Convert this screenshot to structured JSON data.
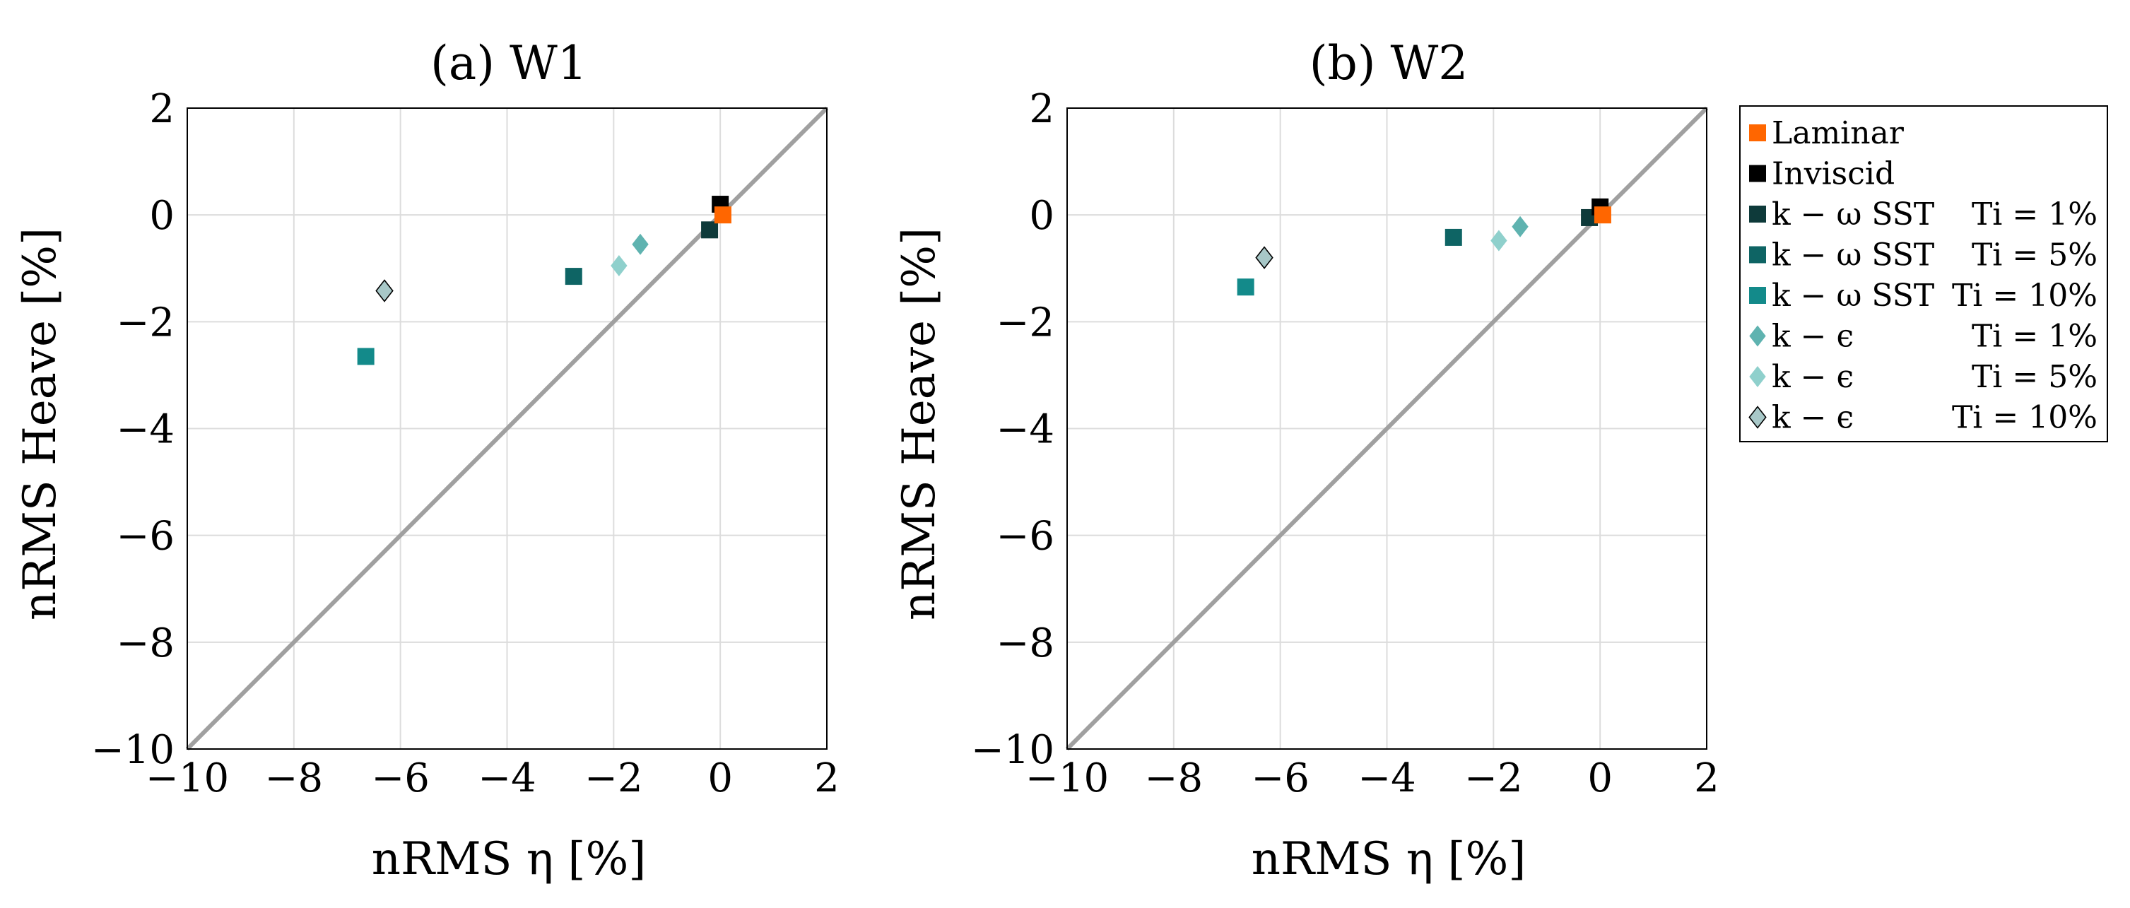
{
  "chart_data": [
    {
      "type": "scatter",
      "title": "(a) W1",
      "xlabel": "nRMS η [%]",
      "ylabel": "nRMS Heave [%]",
      "xlim": [
        -10,
        2
      ],
      "ylim": [
        -10,
        2
      ],
      "xticks": [
        -10,
        -8,
        -6,
        -4,
        -2,
        0,
        2
      ],
      "yticks": [
        -10,
        -8,
        -6,
        -4,
        -2,
        0,
        2
      ],
      "grid": true,
      "reference_line": {
        "from": [
          -10,
          -10
        ],
        "to": [
          2,
          2
        ]
      },
      "series": [
        {
          "name": "Laminar",
          "x": [
            0.05
          ],
          "y": [
            0.0
          ]
        },
        {
          "name": "Inviscid",
          "x": [
            0.0
          ],
          "y": [
            0.2
          ]
        },
        {
          "name": "k-ω SST Ti = 1%",
          "x": [
            -0.2
          ],
          "y": [
            -0.28
          ]
        },
        {
          "name": "k-ω SST Ti = 5%",
          "x": [
            -2.75
          ],
          "y": [
            -1.15
          ]
        },
        {
          "name": "k-ω SST Ti = 10%",
          "x": [
            -6.65
          ],
          "y": [
            -2.65
          ]
        },
        {
          "name": "k-ε Ti = 1%",
          "x": [
            -1.5
          ],
          "y": [
            -0.55
          ]
        },
        {
          "name": "k-ε Ti = 5%",
          "x": [
            -1.9
          ],
          "y": [
            -0.95
          ]
        },
        {
          "name": "k-ε Ti = 10%",
          "x": [
            -6.3
          ],
          "y": [
            -1.42
          ]
        }
      ]
    },
    {
      "type": "scatter",
      "title": "(b) W2",
      "xlabel": "nRMS η [%]",
      "ylabel": "nRMS Heave [%]",
      "xlim": [
        -10,
        2
      ],
      "ylim": [
        -10,
        2
      ],
      "xticks": [
        -10,
        -8,
        -6,
        -4,
        -2,
        0,
        2
      ],
      "yticks": [
        -10,
        -8,
        -6,
        -4,
        -2,
        0,
        2
      ],
      "grid": true,
      "reference_line": {
        "from": [
          -10,
          -10
        ],
        "to": [
          2,
          2
        ]
      },
      "series": [
        {
          "name": "Laminar",
          "x": [
            0.05
          ],
          "y": [
            0.0
          ]
        },
        {
          "name": "Inviscid",
          "x": [
            0.0
          ],
          "y": [
            0.15
          ]
        },
        {
          "name": "k-ω SST Ti = 1%",
          "x": [
            -0.2
          ],
          "y": [
            -0.05
          ]
        },
        {
          "name": "k-ω SST Ti = 5%",
          "x": [
            -2.75
          ],
          "y": [
            -0.42
          ]
        },
        {
          "name": "k-ω SST Ti = 10%",
          "x": [
            -6.65
          ],
          "y": [
            -1.35
          ]
        },
        {
          "name": "k-ε Ti = 1%",
          "x": [
            -1.5
          ],
          "y": [
            -0.22
          ]
        },
        {
          "name": "k-ε Ti = 5%",
          "x": [
            -1.9
          ],
          "y": [
            -0.48
          ]
        },
        {
          "name": "k-ε Ti = 10%",
          "x": [
            -6.3
          ],
          "y": [
            -0.8
          ]
        }
      ]
    }
  ],
  "legend": {
    "placement": "right",
    "entries": [
      {
        "label": "Laminar",
        "model": "",
        "ti": "",
        "marker": "square",
        "color": "#FF6600"
      },
      {
        "label": "Inviscid",
        "model": "",
        "ti": "",
        "marker": "square",
        "color": "#000000"
      },
      {
        "label": "",
        "model": "k − ω SST",
        "ti": "Ti = 1%",
        "marker": "square",
        "color": "#0E3A3A"
      },
      {
        "label": "",
        "model": "k − ω SST",
        "ti": "Ti = 5%",
        "marker": "square",
        "color": "#0E6464"
      },
      {
        "label": "",
        "model": "k − ω SST",
        "ti": "Ti = 10%",
        "marker": "square",
        "color": "#138A8A"
      },
      {
        "label": "",
        "model": "k − ϵ",
        "ti": "Ti = 1%",
        "marker": "diamond",
        "color": "#5FB3B0"
      },
      {
        "label": "",
        "model": "k − ϵ",
        "ti": "Ti = 5%",
        "marker": "diamond",
        "color": "#8FD0CC"
      },
      {
        "label": "",
        "model": "k − ϵ",
        "ti": "Ti = 10%",
        "marker": "diamond",
        "color": "#A8C8C8"
      }
    ]
  },
  "colors": {
    "grid": "#dcdcdc",
    "axis": "#000000",
    "reference_line": "#a0a0a0"
  }
}
